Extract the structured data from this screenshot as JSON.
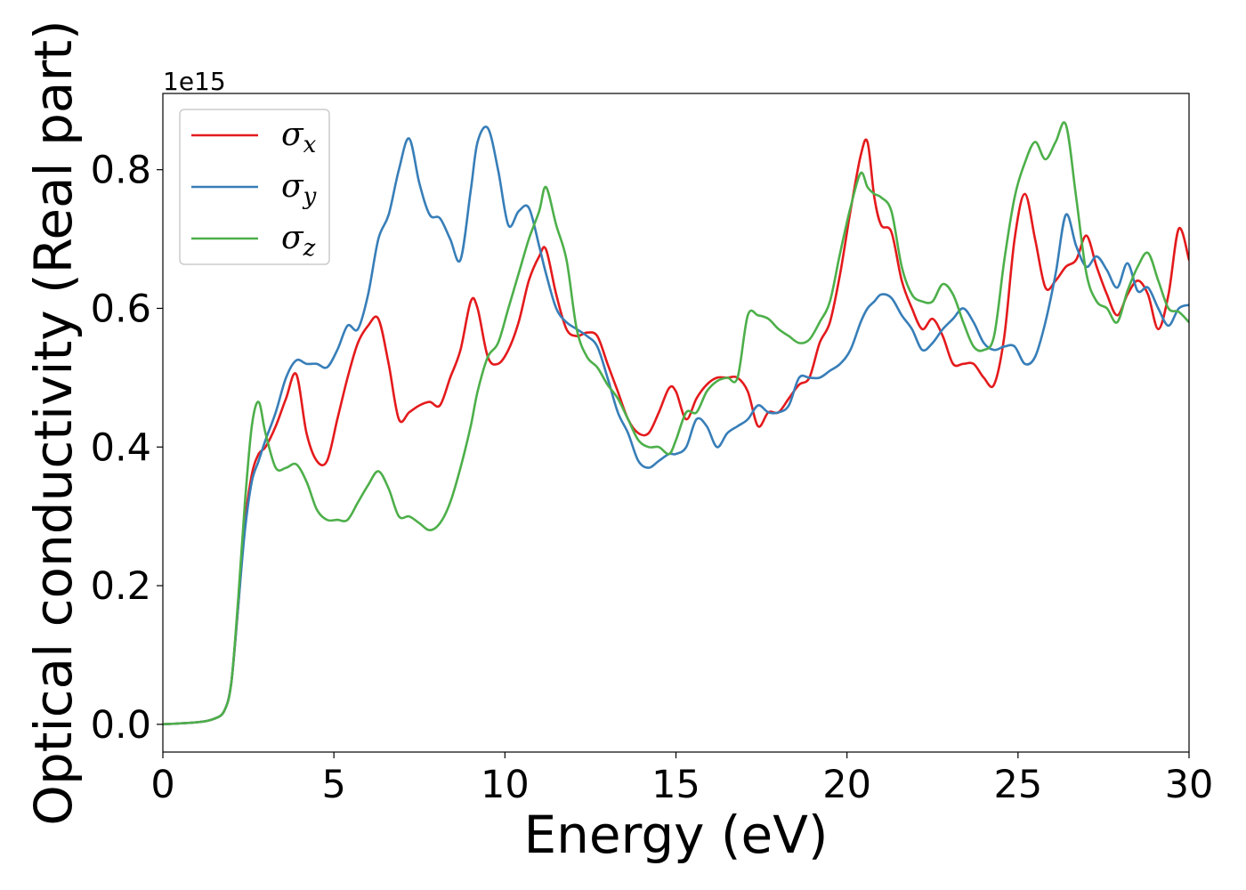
{
  "chart_data": {
    "type": "line",
    "xlabel": "Energy (eV)",
    "ylabel": "Optical conductivity (Real part)",
    "y_offset_label": "1e15",
    "xlim": [
      0,
      30
    ],
    "ylim": [
      -0.04,
      0.91
    ],
    "x_ticks": [
      0,
      5,
      10,
      15,
      20,
      25,
      30
    ],
    "x_tick_labels": [
      "0",
      "5",
      "10",
      "15",
      "20",
      "25",
      "30"
    ],
    "y_ticks": [
      0.0,
      0.2,
      0.4,
      0.6,
      0.8
    ],
    "y_tick_labels": [
      "0.0",
      "0.2",
      "0.4",
      "0.6",
      "0.8"
    ],
    "grid": false,
    "legend_position": "top-left",
    "series": [
      {
        "name": "σx",
        "symbol": "σ",
        "subscript": "x",
        "color": "#e41a1c",
        "x": [
          0,
          1,
          1.5,
          1.8,
          2.0,
          2.2,
          2.4,
          2.6,
          2.8,
          3.0,
          3.3,
          3.6,
          3.9,
          4.2,
          4.5,
          4.8,
          5.1,
          5.4,
          5.7,
          6.0,
          6.3,
          6.6,
          6.9,
          7.2,
          7.5,
          7.8,
          8.1,
          8.4,
          8.7,
          9.0,
          9.2,
          9.5,
          9.8,
          10.1,
          10.4,
          10.7,
          11.0,
          11.2,
          11.5,
          11.8,
          12.1,
          12.4,
          12.7,
          13.0,
          13.3,
          13.6,
          13.9,
          14.2,
          14.5,
          14.8,
          15.0,
          15.3,
          15.6,
          15.9,
          16.2,
          16.5,
          16.8,
          17.1,
          17.4,
          17.7,
          18.0,
          18.3,
          18.6,
          18.9,
          19.2,
          19.5,
          19.8,
          20.1,
          20.4,
          20.6,
          20.8,
          21.0,
          21.3,
          21.6,
          21.9,
          22.2,
          22.5,
          22.8,
          23.1,
          23.4,
          23.7,
          24.0,
          24.3,
          24.6,
          24.9,
          25.2,
          25.5,
          25.8,
          26.1,
          26.4,
          26.7,
          27.0,
          27.3,
          27.6,
          27.9,
          28.2,
          28.5,
          28.8,
          29.1,
          29.4,
          29.7,
          30.0
        ],
        "y": [
          0.0,
          0.003,
          0.008,
          0.02,
          0.06,
          0.17,
          0.29,
          0.36,
          0.39,
          0.4,
          0.43,
          0.47,
          0.505,
          0.42,
          0.38,
          0.38,
          0.44,
          0.5,
          0.55,
          0.575,
          0.585,
          0.52,
          0.44,
          0.45,
          0.46,
          0.465,
          0.46,
          0.5,
          0.54,
          0.61,
          0.6,
          0.53,
          0.52,
          0.54,
          0.58,
          0.64,
          0.675,
          0.685,
          0.62,
          0.57,
          0.56,
          0.565,
          0.56,
          0.52,
          0.48,
          0.44,
          0.42,
          0.42,
          0.45,
          0.485,
          0.48,
          0.44,
          0.47,
          0.49,
          0.5,
          0.5,
          0.5,
          0.48,
          0.43,
          0.45,
          0.45,
          0.47,
          0.49,
          0.5,
          0.55,
          0.58,
          0.65,
          0.74,
          0.82,
          0.84,
          0.76,
          0.72,
          0.71,
          0.64,
          0.6,
          0.57,
          0.585,
          0.56,
          0.52,
          0.52,
          0.52,
          0.5,
          0.49,
          0.56,
          0.7,
          0.765,
          0.7,
          0.63,
          0.64,
          0.66,
          0.67,
          0.705,
          0.66,
          0.62,
          0.59,
          0.62,
          0.64,
          0.62,
          0.57,
          0.62,
          0.715,
          0.67
        ]
      },
      {
        "name": "σy",
        "symbol": "σ",
        "subscript": "y",
        "color": "#377eb8",
        "x": [
          0,
          1,
          1.5,
          1.8,
          2.0,
          2.2,
          2.4,
          2.6,
          2.8,
          3.0,
          3.3,
          3.6,
          3.9,
          4.2,
          4.5,
          4.8,
          5.1,
          5.4,
          5.7,
          6.0,
          6.3,
          6.6,
          6.9,
          7.2,
          7.5,
          7.8,
          8.1,
          8.4,
          8.7,
          9.0,
          9.2,
          9.5,
          9.8,
          10.1,
          10.4,
          10.7,
          11.0,
          11.2,
          11.5,
          11.8,
          12.1,
          12.4,
          12.7,
          13.0,
          13.3,
          13.6,
          13.9,
          14.2,
          14.5,
          14.8,
          15.0,
          15.3,
          15.6,
          15.9,
          16.2,
          16.5,
          16.8,
          17.1,
          17.4,
          17.7,
          18.0,
          18.3,
          18.6,
          18.9,
          19.2,
          19.5,
          19.8,
          20.1,
          20.4,
          20.6,
          20.8,
          21.0,
          21.3,
          21.6,
          21.9,
          22.2,
          22.5,
          22.8,
          23.1,
          23.4,
          23.7,
          24.0,
          24.3,
          24.6,
          24.9,
          25.2,
          25.5,
          25.8,
          26.1,
          26.4,
          26.7,
          27.0,
          27.3,
          27.6,
          27.9,
          28.2,
          28.5,
          28.8,
          29.1,
          29.4,
          29.7,
          30.0
        ],
        "y": [
          0.0,
          0.003,
          0.008,
          0.02,
          0.06,
          0.17,
          0.28,
          0.35,
          0.38,
          0.41,
          0.45,
          0.5,
          0.525,
          0.52,
          0.52,
          0.515,
          0.54,
          0.575,
          0.57,
          0.62,
          0.7,
          0.735,
          0.8,
          0.845,
          0.78,
          0.735,
          0.73,
          0.7,
          0.67,
          0.77,
          0.84,
          0.86,
          0.8,
          0.72,
          0.74,
          0.745,
          0.69,
          0.65,
          0.6,
          0.58,
          0.57,
          0.56,
          0.545,
          0.5,
          0.45,
          0.42,
          0.38,
          0.37,
          0.38,
          0.39,
          0.39,
          0.4,
          0.44,
          0.43,
          0.4,
          0.42,
          0.43,
          0.44,
          0.46,
          0.45,
          0.45,
          0.46,
          0.5,
          0.5,
          0.5,
          0.51,
          0.52,
          0.54,
          0.58,
          0.6,
          0.61,
          0.62,
          0.615,
          0.59,
          0.57,
          0.54,
          0.55,
          0.57,
          0.585,
          0.6,
          0.58,
          0.55,
          0.54,
          0.545,
          0.545,
          0.52,
          0.53,
          0.58,
          0.65,
          0.735,
          0.69,
          0.66,
          0.675,
          0.655,
          0.63,
          0.665,
          0.625,
          0.63,
          0.6,
          0.575,
          0.6,
          0.605
        ]
      },
      {
        "name": "σz",
        "symbol": "σ",
        "subscript": "z",
        "color": "#4daf4a",
        "x": [
          0,
          1,
          1.5,
          1.8,
          2.0,
          2.2,
          2.4,
          2.6,
          2.8,
          3.0,
          3.3,
          3.6,
          3.9,
          4.2,
          4.5,
          4.8,
          5.1,
          5.4,
          5.7,
          6.0,
          6.3,
          6.6,
          6.9,
          7.2,
          7.5,
          7.8,
          8.1,
          8.4,
          8.7,
          9.0,
          9.2,
          9.5,
          9.8,
          10.1,
          10.4,
          10.7,
          11.0,
          11.2,
          11.5,
          11.8,
          12.1,
          12.4,
          12.7,
          13.0,
          13.3,
          13.6,
          13.9,
          14.2,
          14.5,
          14.8,
          15.0,
          15.3,
          15.6,
          15.9,
          16.2,
          16.5,
          16.8,
          17.1,
          17.4,
          17.7,
          18.0,
          18.3,
          18.6,
          18.9,
          19.2,
          19.5,
          19.8,
          20.1,
          20.4,
          20.6,
          20.8,
          21.0,
          21.3,
          21.6,
          21.9,
          22.2,
          22.5,
          22.8,
          23.1,
          23.4,
          23.7,
          24.0,
          24.3,
          24.6,
          24.9,
          25.2,
          25.5,
          25.8,
          26.1,
          26.4,
          26.7,
          27.0,
          27.3,
          27.6,
          27.9,
          28.2,
          28.5,
          28.8,
          29.1,
          29.4,
          29.7,
          30.0
        ],
        "y": [
          0.0,
          0.003,
          0.008,
          0.02,
          0.06,
          0.18,
          0.32,
          0.43,
          0.465,
          0.42,
          0.37,
          0.37,
          0.375,
          0.35,
          0.31,
          0.295,
          0.295,
          0.295,
          0.32,
          0.345,
          0.365,
          0.34,
          0.3,
          0.3,
          0.29,
          0.28,
          0.29,
          0.32,
          0.37,
          0.43,
          0.48,
          0.53,
          0.55,
          0.6,
          0.65,
          0.7,
          0.74,
          0.775,
          0.72,
          0.67,
          0.57,
          0.53,
          0.515,
          0.49,
          0.47,
          0.44,
          0.41,
          0.4,
          0.4,
          0.39,
          0.41,
          0.45,
          0.45,
          0.48,
          0.495,
          0.5,
          0.5,
          0.59,
          0.59,
          0.585,
          0.57,
          0.56,
          0.55,
          0.555,
          0.58,
          0.61,
          0.68,
          0.745,
          0.795,
          0.775,
          0.765,
          0.76,
          0.74,
          0.66,
          0.62,
          0.61,
          0.61,
          0.635,
          0.62,
          0.58,
          0.545,
          0.54,
          0.56,
          0.67,
          0.76,
          0.81,
          0.84,
          0.815,
          0.84,
          0.865,
          0.76,
          0.65,
          0.61,
          0.6,
          0.58,
          0.625,
          0.66,
          0.68,
          0.64,
          0.6,
          0.595,
          0.58
        ]
      }
    ]
  }
}
